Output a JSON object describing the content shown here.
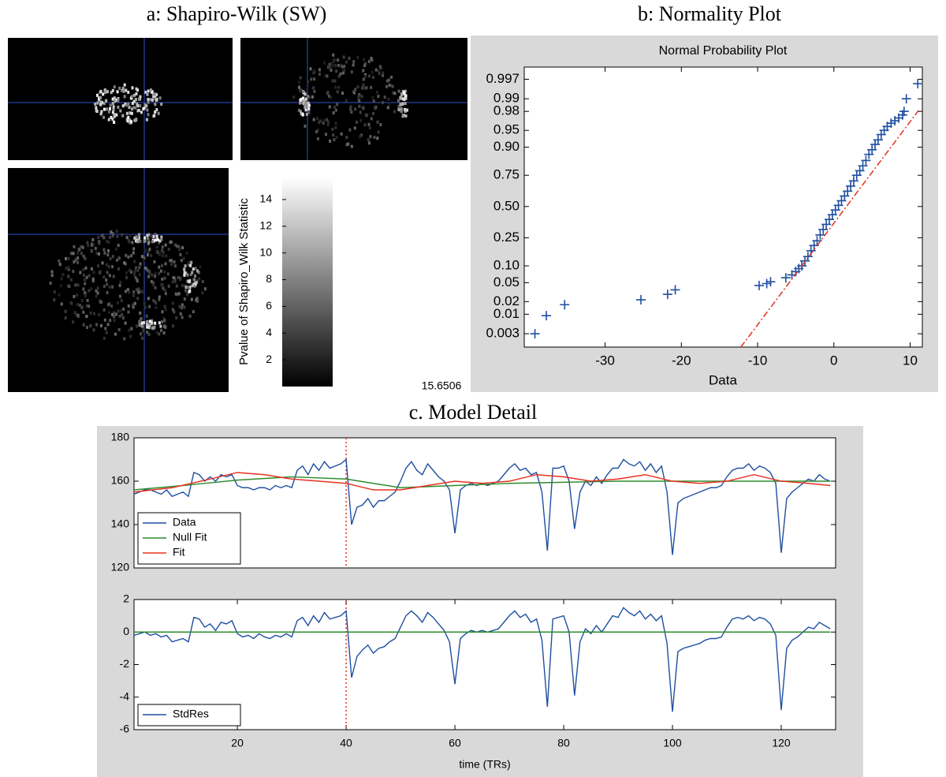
{
  "chart_data": [
    {
      "type": "image",
      "title": "a: Shapiro-Wilk (SW)",
      "colorbar_label": "Pvalue of Shapiro_Wilk Statistic",
      "ylim": [
        0,
        15.65
      ],
      "yticks": [
        2,
        4,
        6,
        8,
        10,
        12,
        14
      ],
      "annotation": "15.6506"
    },
    {
      "type": "scatter",
      "panel_title": "b: Normality Plot",
      "title": "Normal Probability Plot",
      "xlabel": "Data",
      "yscale": "probability",
      "xlim": [
        -40.6,
        11.6
      ],
      "ylim": [
        0.0012,
        0.9987
      ],
      "xticks": [
        -30,
        -20,
        -10,
        0,
        10
      ],
      "yticks": [
        0.003,
        0.01,
        0.02,
        0.05,
        {
          "value": 0.1,
          "label": "0.10"
        },
        0.25,
        {
          "value": 0.5,
          "label": "0.50"
        },
        0.75,
        {
          "value": 0.9,
          "label": "0.90"
        },
        0.95,
        0.98,
        0.99,
        0.997
      ],
      "series": [
        {
          "color": "#1f4fa0",
          "marker": "plus",
          "x": [
            -39.2,
            -37.7,
            -35.3,
            -25.3,
            -21.8,
            -20.8,
            -9.8,
            -8.8,
            -8.3,
            -6.3,
            -5.5,
            -5,
            -4.6,
            -4.2,
            -3.8,
            -3.4,
            -3,
            -2.6,
            -2.2,
            -1.8,
            -1.4,
            -1,
            -0.6,
            -0.2,
            0.2,
            0.6,
            1,
            1.4,
            1.8,
            2.2,
            2.6,
            3,
            3.4,
            3.8,
            4.2,
            4.6,
            5,
            5.4,
            5.8,
            6.2,
            6.6,
            7,
            7.5,
            8,
            8.5,
            9,
            9.2,
            9.5,
            11
          ],
          "values": [
            0.003,
            0.0092,
            0.017,
            0.022,
            0.029,
            0.036,
            0.044,
            0.048,
            0.052,
            0.062,
            0.07,
            0.08,
            0.09,
            0.1,
            0.12,
            0.14,
            0.17,
            0.2,
            0.23,
            0.27,
            0.31,
            0.35,
            0.39,
            0.43,
            0.47,
            0.51,
            0.55,
            0.59,
            0.63,
            0.67,
            0.71,
            0.75,
            0.78,
            0.81,
            0.84,
            0.87,
            0.89,
            0.91,
            0.925,
            0.94,
            0.95,
            0.958,
            0.964,
            0.968,
            0.972,
            0.976,
            0.98,
            0.99,
            0.996
          ]
        },
        {
          "color": "#e03020",
          "style": "dashdot",
          "x": [
            -12.2,
            11.1
          ],
          "values": [
            0.0012,
            0.981
          ]
        }
      ]
    },
    {
      "type": "line",
      "title": "c. Model Detail",
      "xlim": [
        1,
        130
      ],
      "ylim": [
        120,
        180
      ],
      "yticks": [
        120,
        140,
        160,
        180
      ],
      "vline": 40,
      "legend": "lower left",
      "x": [
        1,
        2,
        3,
        4,
        5,
        6,
        7,
        8,
        9,
        10,
        11,
        12,
        13,
        14,
        15,
        16,
        17,
        18,
        19,
        20,
        21,
        22,
        23,
        24,
        25,
        26,
        27,
        28,
        29,
        30,
        31,
        32,
        33,
        34,
        35,
        36,
        37,
        38,
        39,
        40,
        41,
        42,
        43,
        44,
        45,
        46,
        47,
        48,
        49,
        50,
        51,
        52,
        53,
        54,
        55,
        56,
        57,
        58,
        59,
        60,
        61,
        62,
        63,
        64,
        65,
        66,
        67,
        68,
        69,
        70,
        71,
        72,
        73,
        74,
        75,
        76,
        77,
        78,
        79,
        80,
        81,
        82,
        83,
        84,
        85,
        86,
        87,
        88,
        89,
        90,
        91,
        92,
        93,
        94,
        95,
        96,
        97,
        98,
        99,
        100,
        101,
        102,
        103,
        104,
        105,
        106,
        107,
        108,
        109,
        110,
        111,
        112,
        113,
        114,
        115,
        116,
        117,
        118,
        119,
        120,
        121,
        122,
        123,
        124,
        125,
        126,
        127,
        128,
        129
      ],
      "series": [
        {
          "name": "Data",
          "color": "#1f4fa0",
          "values": [
            154,
            155,
            156,
            156,
            155,
            154,
            156,
            153,
            154,
            155,
            153,
            164,
            163,
            160,
            162,
            160,
            163,
            162,
            163,
            158,
            157,
            157,
            156,
            157,
            157,
            156,
            158,
            157,
            158,
            157,
            165,
            167,
            163,
            168,
            165,
            169,
            166,
            167,
            168,
            170,
            140,
            148,
            149,
            152,
            148,
            151,
            151,
            153,
            155,
            160,
            166,
            169,
            165,
            163,
            168,
            165,
            162,
            160,
            156,
            136,
            156,
            158,
            159,
            158,
            159,
            158,
            159,
            160,
            163,
            166,
            168,
            165,
            166,
            163,
            164,
            155,
            128,
            166,
            166,
            167,
            160,
            138,
            155,
            160,
            158,
            162,
            159,
            163,
            166,
            166,
            170,
            168,
            167,
            169,
            165,
            168,
            164,
            167,
            155,
            126,
            150,
            152,
            153,
            154,
            155,
            156,
            157,
            157,
            158,
            162,
            165,
            166,
            166,
            168,
            165,
            167,
            166,
            164,
            159,
            127,
            152,
            155,
            157,
            159,
            161,
            160,
            163,
            161,
            160
          ]
        },
        {
          "name": "Null Fit",
          "color": "#2e8b2e",
          "x": [
            1,
            10,
            20,
            30,
            40,
            50,
            60,
            70,
            80,
            90,
            100,
            110,
            120,
            129
          ],
          "values": [
            156,
            158,
            160.5,
            162,
            161,
            157,
            158,
            159,
            159.5,
            160,
            160,
            160,
            160,
            160
          ]
        },
        {
          "name": "Fit",
          "color": "#e83020",
          "x": [
            1,
            8,
            15,
            20,
            25,
            30,
            35,
            40,
            45,
            50,
            55,
            60,
            65,
            70,
            75,
            80,
            85,
            90,
            95,
            100,
            105,
            110,
            115,
            120,
            125,
            129
          ],
          "values": [
            155,
            157,
            161,
            164,
            163,
            161,
            160,
            159,
            156,
            156,
            158,
            160,
            159,
            160,
            163,
            162,
            160,
            161,
            163,
            160,
            159,
            160,
            163,
            160,
            159,
            158
          ]
        }
      ]
    },
    {
      "type": "line",
      "xlabel": "time (TRs)",
      "xlim": [
        1,
        130
      ],
      "ylim": [
        -6,
        2
      ],
      "yticks": [
        -6,
        -4,
        -2,
        0,
        2
      ],
      "xticks": [
        20,
        40,
        60,
        80,
        100,
        120
      ],
      "vline": 40,
      "legend": "lower left",
      "x": [
        1,
        2,
        3,
        4,
        5,
        6,
        7,
        8,
        9,
        10,
        11,
        12,
        13,
        14,
        15,
        16,
        17,
        18,
        19,
        20,
        21,
        22,
        23,
        24,
        25,
        26,
        27,
        28,
        29,
        30,
        31,
        32,
        33,
        34,
        35,
        36,
        37,
        38,
        39,
        40,
        41,
        42,
        43,
        44,
        45,
        46,
        47,
        48,
        49,
        50,
        51,
        52,
        53,
        54,
        55,
        56,
        57,
        58,
        59,
        60,
        61,
        62,
        63,
        64,
        65,
        66,
        67,
        68,
        69,
        70,
        71,
        72,
        73,
        74,
        75,
        76,
        77,
        78,
        79,
        80,
        81,
        82,
        83,
        84,
        85,
        86,
        87,
        88,
        89,
        90,
        91,
        92,
        93,
        94,
        95,
        96,
        97,
        98,
        99,
        100,
        101,
        102,
        103,
        104,
        105,
        106,
        107,
        108,
        109,
        110,
        111,
        112,
        113,
        114,
        115,
        116,
        117,
        118,
        119,
        120,
        121,
        122,
        123,
        124,
        125,
        126,
        127,
        128,
        129
      ],
      "series": [
        {
          "name": "StdRes",
          "color": "#1f4fa0",
          "values": [
            -0.2,
            -0.1,
            0,
            -0.2,
            -0.1,
            -0.3,
            -0.2,
            -0.6,
            -0.5,
            -0.4,
            -0.6,
            0.9,
            0.8,
            0.3,
            0.5,
            0.1,
            0.6,
            0.5,
            0.7,
            -0.1,
            -0.3,
            -0.2,
            -0.4,
            -0.1,
            -0.3,
            -0.4,
            -0.2,
            -0.3,
            -0.1,
            -0.3,
            0.7,
            0.9,
            0.4,
            1.0,
            0.6,
            1.2,
            0.8,
            0.9,
            1.0,
            1.3,
            -2.8,
            -1.5,
            -1.1,
            -0.8,
            -1.3,
            -1.0,
            -0.9,
            -0.6,
            -0.4,
            0.3,
            1.0,
            1.3,
            1.0,
            0.6,
            1.2,
            0.9,
            0.5,
            0.1,
            -0.6,
            -3.2,
            -0.4,
            -0.1,
            0.1,
            0.0,
            0.1,
            0.0,
            0.1,
            0.2,
            0.6,
            1.0,
            1.3,
            0.9,
            1.1,
            0.6,
            0.8,
            -0.5,
            -4.6,
            0.8,
            0.9,
            1.0,
            0.0,
            -3.9,
            -0.6,
            0.2,
            -0.1,
            0.4,
            0.0,
            0.5,
            1.0,
            0.9,
            1.5,
            1.2,
            1.0,
            1.3,
            0.8,
            1.1,
            0.7,
            1.0,
            -0.7,
            -4.9,
            -1.2,
            -1.0,
            -0.9,
            -0.8,
            -0.7,
            -0.5,
            -0.4,
            -0.4,
            -0.3,
            0.3,
            0.8,
            0.9,
            0.8,
            1.0,
            0.7,
            0.9,
            0.8,
            0.5,
            -0.2,
            -4.8,
            -1.0,
            -0.5,
            -0.3,
            0.0,
            0.3,
            0.2,
            0.6,
            0.4,
            0.2
          ]
        },
        {
          "color": "#2e8b2e",
          "x": [
            1,
            129
          ],
          "values": [
            0,
            0
          ]
        }
      ]
    }
  ]
}
